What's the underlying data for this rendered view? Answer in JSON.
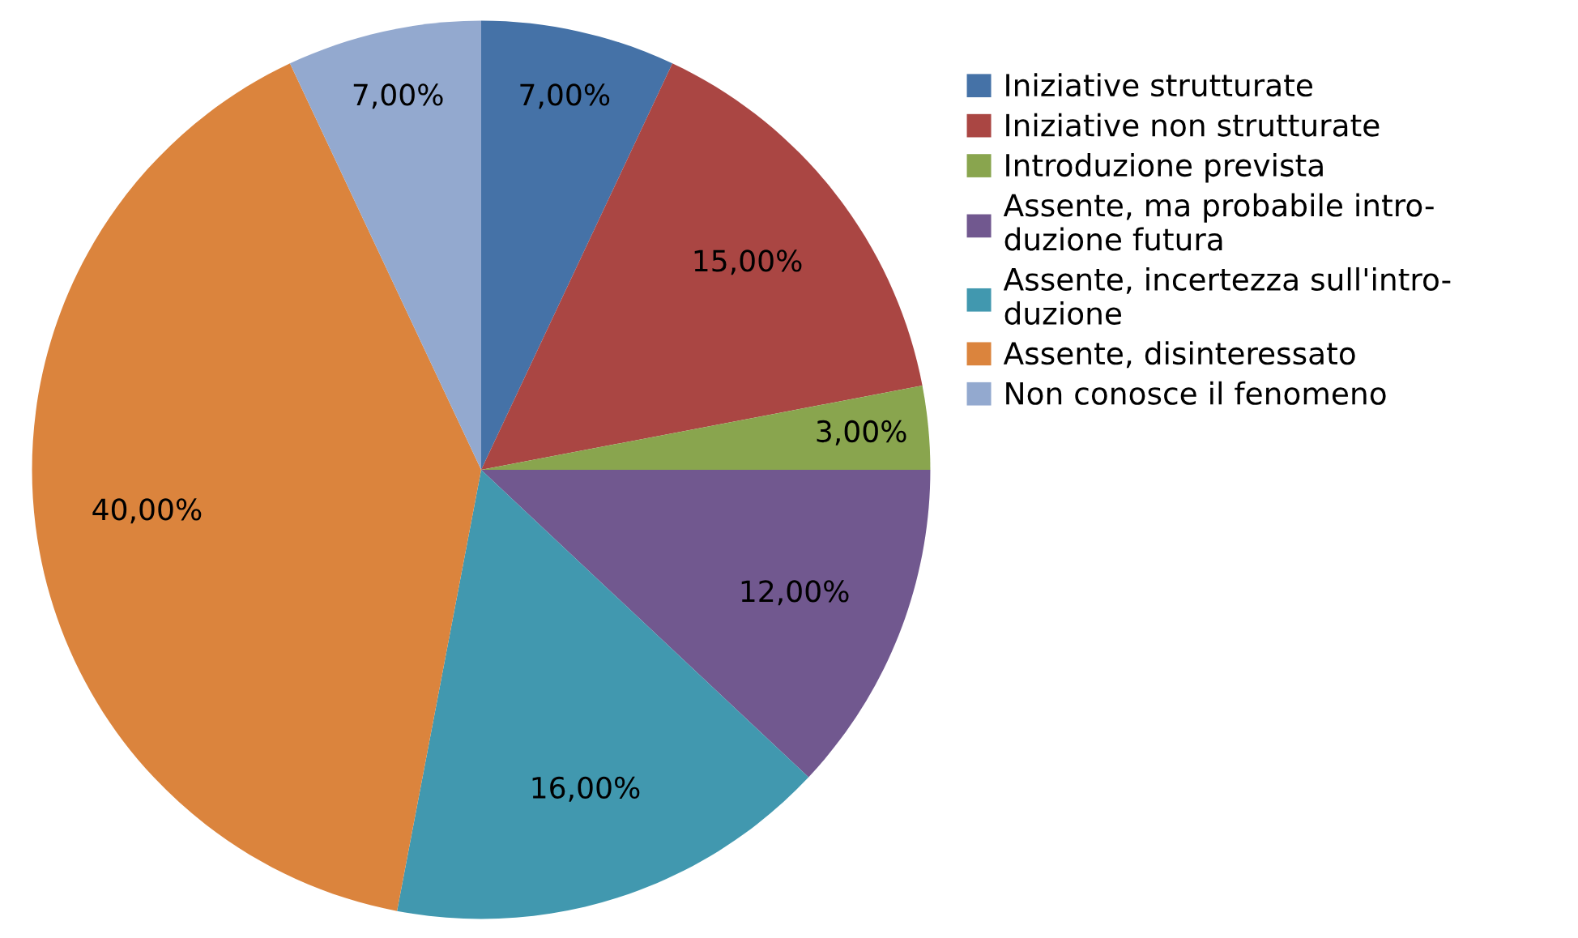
{
  "chart_data": {
    "type": "pie",
    "categories": [
      "Iniziative strutturate",
      "Iniziative non strutturate",
      "Introduzione prevista",
      "Assente, ma probabile intro-\nduzione futura",
      "Assente, incertezza sull'intro-\nduzione",
      "Assente, disinteressato",
      "Non conosce il fenomeno"
    ],
    "values": [
      7,
      15,
      3,
      12,
      16,
      40,
      7
    ],
    "value_labels": [
      "7,00%",
      "15,00%",
      "3,00%",
      "12,00%",
      "16,00%",
      "40,00%",
      "7,00%"
    ],
    "colors": [
      "#4572a7",
      "#aa4643",
      "#89a54e",
      "#71588f",
      "#4198af",
      "#db843d",
      "#93a9cf"
    ],
    "legend": "right"
  }
}
